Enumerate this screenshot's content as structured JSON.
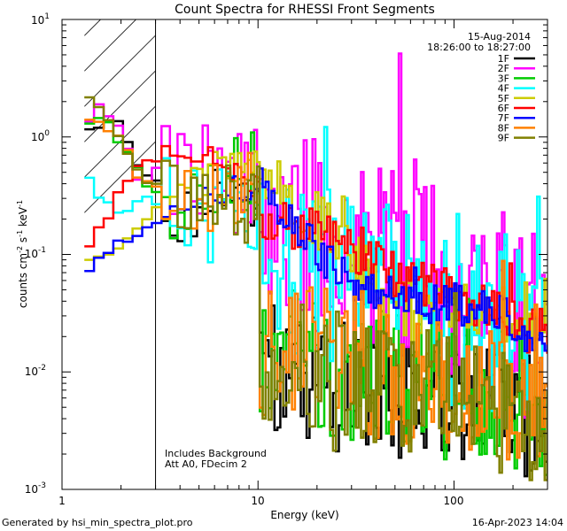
{
  "chart_data": {
    "type": "line",
    "title": "Count Spectra for RHESSI Front Segments",
    "xlabel": "Energy (keV)",
    "ylabel": {
      "base": "counts cm",
      "exp1": "-2",
      "mid1": " s",
      "exp2": "-1",
      "mid2": " keV",
      "exp3": "-1"
    },
    "xscale": "log",
    "yscale": "log",
    "xlim": [
      1,
      300
    ],
    "ylim": [
      0.001,
      10
    ],
    "x_ticks": [
      {
        "value": 1,
        "label": "1"
      },
      {
        "value": 10,
        "label": "10"
      },
      {
        "value": 100,
        "label": "100"
      }
    ],
    "y_ticks": [
      {
        "value": 0.001,
        "base": "10",
        "exp": "-3"
      },
      {
        "value": 0.01,
        "base": "10",
        "exp": "-2"
      },
      {
        "value": 0.1,
        "base": "10",
        "exp": "-1"
      },
      {
        "value": 1,
        "base": "10",
        "exp": "0"
      },
      {
        "value": 10,
        "base": "10",
        "exp": "1"
      }
    ],
    "hatched_region": [
      1.3,
      3
    ],
    "date": "15-Aug-2014",
    "time_range": "18:26:00 to 18:27:00",
    "annotations": [
      "Includes Background",
      "Att A0, FDecim 2"
    ],
    "series": [
      {
        "name": "1F",
        "color": "#000000",
        "low": [
          1.3,
          1.2,
          1.6,
          0.6,
          0.35,
          0.2,
          0.3,
          0.3,
          0.25
        ],
        "mid": [
          0.012,
          0.008,
          0.006,
          0.005
        ],
        "high": 0.004,
        "noise": 0.55
      },
      {
        "name": "2F",
        "color": "#ff00ff",
        "low": [
          1.5,
          1.6,
          1.2,
          0.45,
          0.45,
          0.4,
          0.45,
          0.4,
          0.45
        ],
        "mid": [
          0.25,
          0.1,
          0.07,
          0.04
        ],
        "high": 0.025,
        "noise": 0.85
      },
      {
        "name": "3F",
        "color": "#00cc00",
        "low": [
          1.45,
          1.3,
          1.0,
          0.5,
          0.3,
          0.25,
          0.3,
          0.35,
          0.3
        ],
        "mid": [
          0.015,
          0.01,
          0.008,
          0.006
        ],
        "high": 0.005,
        "noise": 0.6
      },
      {
        "name": "4F",
        "color": "#00ffff",
        "low": [
          0.5,
          0.3,
          0.2,
          0.3,
          0.25,
          0.2,
          0.2,
          0.2,
          0.15
        ],
        "mid": [
          0.1,
          0.05,
          0.04,
          0.03
        ],
        "high": 0.02,
        "noise": 0.8
      },
      {
        "name": "5F",
        "color": "#cccc00",
        "low": [
          0.1,
          0.1,
          0.1,
          0.15,
          0.25,
          0.35,
          0.45,
          0.55,
          0.65
        ],
        "mid": [
          0.6,
          0.1,
          0.03,
          0.035
        ],
        "high": 0.025,
        "noise": 0.25
      },
      {
        "name": "6F",
        "color": "#ff0000",
        "low": [
          0.13,
          0.18,
          0.3,
          0.55,
          0.7,
          0.75,
          0.65,
          0.5,
          0.35
        ],
        "mid": [
          0.2,
          0.12,
          0.06,
          0.04
        ],
        "high": 0.02,
        "noise": 0.22
      },
      {
        "name": "7F",
        "color": "#0000ff",
        "low": [
          0.08,
          0.09,
          0.12,
          0.15,
          0.2,
          0.25,
          0.3,
          0.35,
          0.4
        ],
        "mid": [
          0.45,
          0.05,
          0.04,
          0.035
        ],
        "high": 0.02,
        "noise": 0.2
      },
      {
        "name": "8F",
        "color": "#ff8000",
        "low": [
          1.55,
          1.5,
          1.0,
          0.5,
          0.35,
          0.3,
          0.35,
          0.4,
          0.35
        ],
        "mid": [
          0.018,
          0.012,
          0.008,
          0.006
        ],
        "high": 0.005,
        "noise": 0.6
      },
      {
        "name": "9F",
        "color": "#808000",
        "low": [
          2.4,
          1.8,
          1.0,
          0.5,
          0.35,
          0.25,
          0.3,
          0.3,
          0.25
        ],
        "mid": [
          0.012,
          0.008,
          0.006,
          0.005
        ],
        "high": 0.004,
        "noise": 0.6
      }
    ]
  },
  "footer": {
    "left": "Generated by hsi_min_spectra_plot.pro",
    "right": "16-Apr-2023 14:04"
  }
}
